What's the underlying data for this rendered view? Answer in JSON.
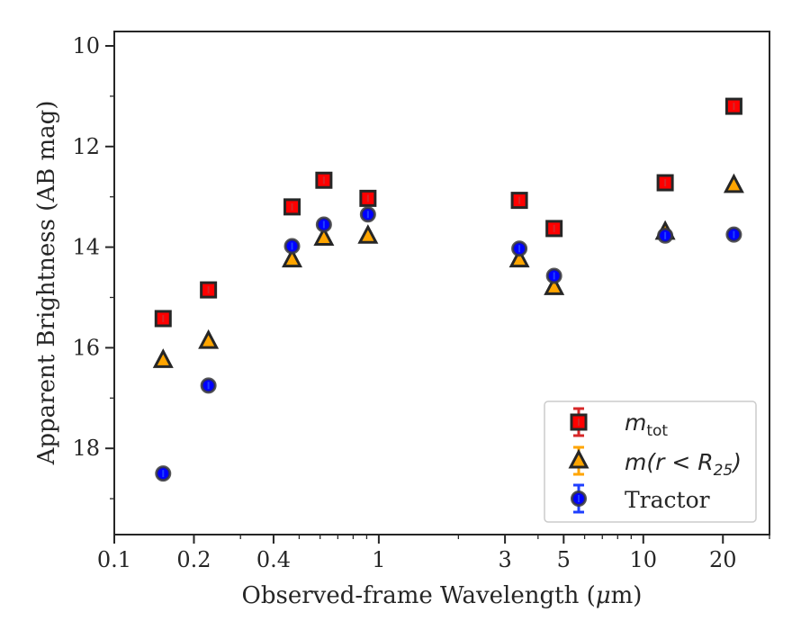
{
  "chart_data": {
    "type": "scatter",
    "x_scale": "log",
    "y_inverted": true,
    "xlabel": "Observed-frame Wavelength (μm)",
    "xlabel_pre": "Observed-frame Wavelength (",
    "xlabel_mu": "μ",
    "xlabel_post": "m)",
    "ylabel": "Apparent Brightness (AB mag)",
    "xlim": [
      0.1,
      30
    ],
    "ylim": [
      10,
      20
    ],
    "x_ticks": [
      0.1,
      0.2,
      0.4,
      1,
      3,
      5,
      10,
      20
    ],
    "x_tick_labels": [
      "0.1",
      "0.2",
      "0.4",
      "1",
      "3",
      "5",
      "10",
      "20"
    ],
    "y_ticks": [
      10,
      12,
      14,
      16,
      18
    ],
    "y_tick_labels": [
      "10",
      "12",
      "14",
      "16",
      "18"
    ],
    "grid": false,
    "legend_position": "bottom-right",
    "x": [
      0.153,
      0.227,
      0.47,
      0.62,
      0.91,
      3.4,
      4.6,
      12.1,
      22.0
    ],
    "series": [
      {
        "name": "m_tot",
        "label_main": "m",
        "label_sub": "tot",
        "marker": "square",
        "color": "#ff0000",
        "errorbar_color": "#d62728",
        "values": [
          15.42,
          14.85,
          13.2,
          12.67,
          13.03,
          13.07,
          13.63,
          12.72,
          11.2
        ]
      },
      {
        "name": "m(r < R_25)",
        "label_pre": "m(r < R",
        "label_sub": "25",
        "label_post": ")",
        "marker": "triangle",
        "color": "#ffa500",
        "errorbar_color": "#ffa500",
        "values": [
          16.25,
          15.87,
          14.25,
          13.82,
          13.78,
          14.25,
          14.8,
          13.7,
          12.77
        ]
      },
      {
        "name": "Tractor",
        "marker": "circle",
        "color": "#0000ff",
        "errorbar_color": "#1f3fff",
        "values": [
          18.5,
          16.75,
          13.98,
          13.55,
          13.35,
          14.03,
          14.57,
          13.77,
          13.75
        ]
      }
    ]
  }
}
